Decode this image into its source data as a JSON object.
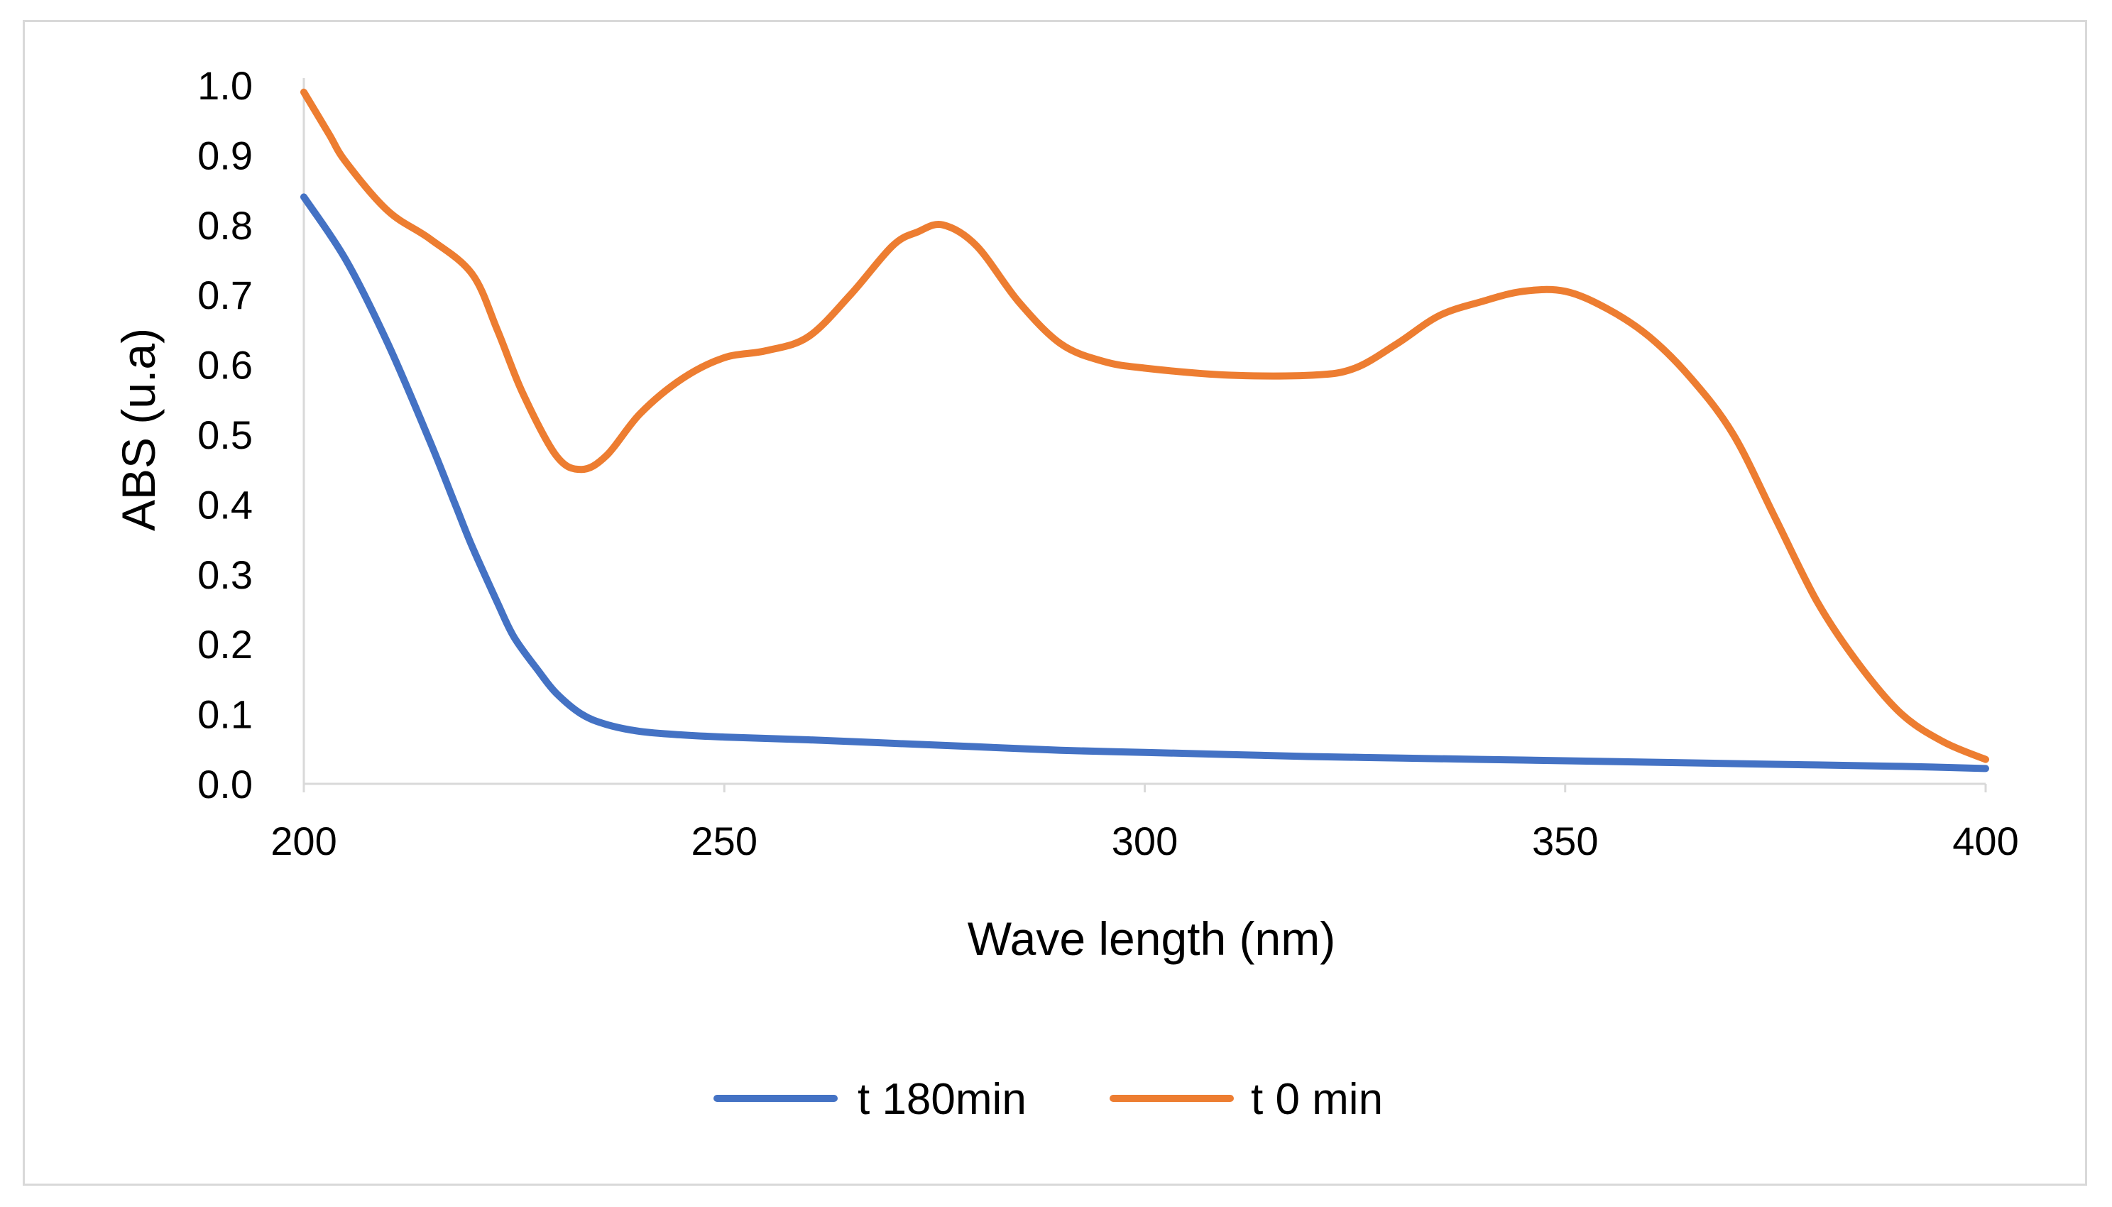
{
  "chart_data": {
    "type": "line",
    "title": "",
    "xlabel": "Wave length (nm)",
    "ylabel": "ABS (u.a)",
    "xlim": [
      200,
      400
    ],
    "ylim": [
      0.0,
      1.0
    ],
    "x_ticks": [
      "200",
      "250",
      "300",
      "350",
      "400"
    ],
    "y_ticks": [
      "0.0",
      "0.1",
      "0.2",
      "0.3",
      "0.4",
      "0.5",
      "0.6",
      "0.7",
      "0.8",
      "0.9",
      "1.0"
    ],
    "grid": false,
    "legend_position": "bottom",
    "series": [
      {
        "name": "t 180min",
        "color": "#4472C4",
        "x": [
          200,
          205,
          210,
          215,
          218,
          220,
          223,
          225,
          228,
          230,
          233,
          236,
          240,
          245,
          250,
          260,
          270,
          280,
          290,
          300,
          310,
          320,
          330,
          340,
          350,
          360,
          370,
          380,
          390,
          400
        ],
        "y": [
          0.84,
          0.75,
          0.63,
          0.49,
          0.4,
          0.34,
          0.26,
          0.21,
          0.16,
          0.13,
          0.1,
          0.085,
          0.075,
          0.07,
          0.067,
          0.063,
          0.058,
          0.053,
          0.048,
          0.045,
          0.042,
          0.039,
          0.037,
          0.035,
          0.033,
          0.031,
          0.029,
          0.027,
          0.025,
          0.022
        ]
      },
      {
        "name": "t 0 min",
        "color": "#ED7D31",
        "x": [
          200,
          203,
          205,
          210,
          215,
          220,
          223,
          226,
          230,
          233,
          236,
          240,
          245,
          250,
          255,
          260,
          265,
          270,
          273,
          276,
          280,
          285,
          290,
          295,
          300,
          310,
          320,
          325,
          330,
          335,
          340,
          345,
          350,
          355,
          360,
          365,
          370,
          375,
          380,
          385,
          390,
          395,
          400
        ],
        "y": [
          0.99,
          0.93,
          0.89,
          0.82,
          0.78,
          0.73,
          0.65,
          0.56,
          0.47,
          0.45,
          0.47,
          0.53,
          0.58,
          0.61,
          0.62,
          0.64,
          0.7,
          0.77,
          0.79,
          0.8,
          0.77,
          0.69,
          0.63,
          0.605,
          0.595,
          0.585,
          0.585,
          0.595,
          0.63,
          0.67,
          0.69,
          0.705,
          0.705,
          0.68,
          0.64,
          0.58,
          0.5,
          0.38,
          0.26,
          0.17,
          0.1,
          0.06,
          0.035
        ]
      }
    ]
  }
}
